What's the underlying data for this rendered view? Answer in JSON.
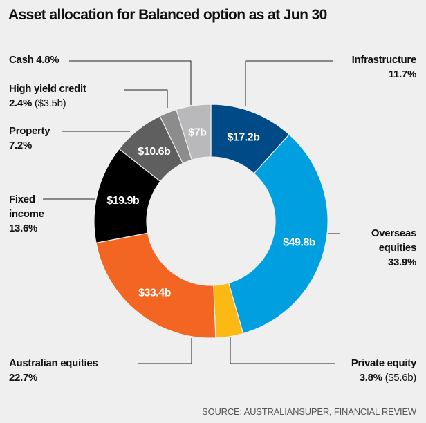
{
  "chart_data": {
    "type": "pie",
    "variant": "donut",
    "title": "Asset allocation for Balanced option as at Jun 30",
    "source": "SOURCE: AUSTRALIANSUPER, FINANCIAL REVIEW",
    "slices": [
      {
        "name": "Infrastructure",
        "percent": 11.7,
        "percent_label": "11.7%",
        "value_label": "$17.2b",
        "color": "#004b87"
      },
      {
        "name": "Overseas equities",
        "percent": 33.9,
        "percent_label": "33.9%",
        "value_label": "$49.8b",
        "color": "#00a0e0"
      },
      {
        "name": "Private equity",
        "percent": 3.8,
        "percent_label": "3.8%",
        "extra_label": "($5.6b)",
        "value_label": "",
        "color": "#fdb913"
      },
      {
        "name": "Australian equities",
        "percent": 22.7,
        "percent_label": "22.7%",
        "value_label": "$33.4b",
        "color": "#f26522"
      },
      {
        "name": "Fixed income",
        "percent": 13.6,
        "percent_label": "13.6%",
        "value_label": "$19.9b",
        "color": "#000000"
      },
      {
        "name": "Property",
        "percent": 7.2,
        "percent_label": "7.2%",
        "value_label": "$10.6b",
        "color": "#5f5f5f"
      },
      {
        "name": "High yield credit",
        "percent": 2.4,
        "percent_label": "2.4%",
        "extra_label": "($3.5b)",
        "value_label": "",
        "color": "#8c8c8c"
      },
      {
        "name": "Cash",
        "percent": 4.8,
        "percent_label": "4.8%",
        "value_label": "$7b",
        "color": "#b9b9bc"
      }
    ],
    "labels": {
      "cash": "Cash",
      "hyc": "High yield credit",
      "property": "Property",
      "fixed1": "Fixed",
      "fixed2": "income",
      "infra": "Infrastructure",
      "overseas1": "Overseas",
      "overseas2": "equities",
      "pe": "Private equity",
      "aus": "Australian equities"
    }
  }
}
